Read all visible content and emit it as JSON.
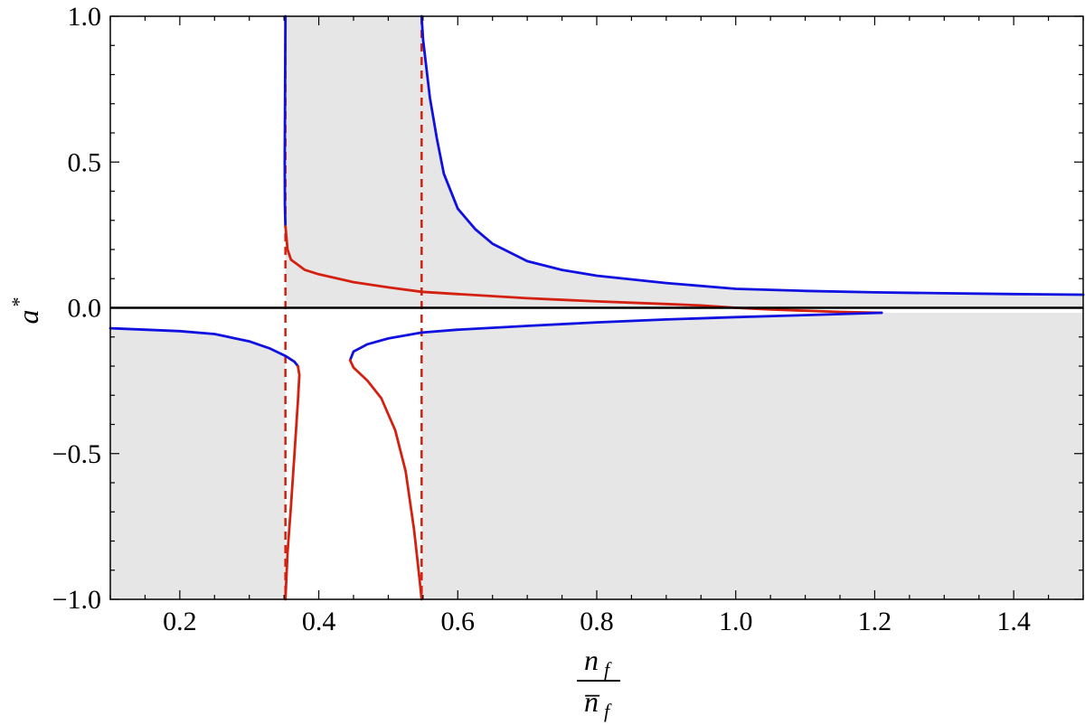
{
  "chart_data": {
    "type": "line",
    "title": "",
    "xlim": [
      0.1,
      1.5
    ],
    "ylim": [
      -1.0,
      1.0
    ],
    "xticks": [
      0.2,
      0.4,
      0.6,
      0.8,
      1.0,
      1.2,
      1.4
    ],
    "xtick_labels": [
      "0.2",
      "0.4",
      "0.6",
      "0.8",
      "1.0",
      "1.2",
      "1.4"
    ],
    "yticks": [
      -1.0,
      -0.5,
      0.0,
      0.5,
      1.0
    ],
    "ytick_labels": [
      "−1.0",
      "−0.5",
      "0.0",
      "0.5",
      "1.0"
    ],
    "xlabel": {
      "numerator": "n",
      "numerator_sub": "f",
      "denominator": "n̅",
      "denominator_sub": "f"
    },
    "ylabel": {
      "base": "a",
      "sup": "*"
    },
    "grid": false,
    "legend": "none",
    "colors": {
      "blue": "#1010e0",
      "red": "#d42010",
      "shade": "#e6e6e6",
      "axis": "#000000"
    },
    "vertical_dashed_lines": [
      0.352,
      0.548
    ],
    "shaded_regions": [
      {
        "name": "upper-left-band",
        "points": [
          [
            0.352,
            1.0
          ],
          [
            0.548,
            1.0
          ],
          [
            0.548,
            0.0
          ],
          [
            0.352,
            0.0
          ]
        ]
      },
      {
        "name": "upper-right-wedge",
        "upper": [
          [
            0.548,
            1.0
          ],
          [
            0.56,
            0.72
          ],
          [
            0.58,
            0.46
          ],
          [
            0.6,
            0.34
          ],
          [
            0.65,
            0.22
          ],
          [
            0.7,
            0.16
          ],
          [
            0.8,
            0.11
          ],
          [
            0.9,
            0.085
          ],
          [
            1.0,
            0.065
          ],
          [
            1.1,
            0.058
          ],
          [
            1.2,
            0.053
          ],
          [
            1.3,
            0.05
          ],
          [
            1.4,
            0.047
          ],
          [
            1.5,
            0.045
          ]
        ],
        "lower": [
          [
            1.5,
            0.0
          ],
          [
            0.548,
            0.0
          ]
        ]
      },
      {
        "name": "lower-left",
        "points": [
          [
            0.1,
            -0.07
          ],
          [
            0.2,
            -0.08
          ],
          [
            0.25,
            -0.09
          ],
          [
            0.3,
            -0.115
          ],
          [
            0.33,
            -0.14
          ],
          [
            0.352,
            -0.165
          ],
          [
            0.352,
            -1.0
          ],
          [
            0.1,
            -1.0
          ]
        ]
      },
      {
        "name": "lower-right",
        "points": [
          [
            0.548,
            -0.085
          ],
          [
            0.7,
            -0.062
          ],
          [
            0.8,
            -0.05
          ],
          [
            0.9,
            -0.04
          ],
          [
            1.0,
            -0.032
          ],
          [
            1.1,
            -0.025
          ],
          [
            1.21,
            -0.017
          ],
          [
            1.5,
            -0.017
          ],
          [
            1.5,
            -1.0
          ],
          [
            0.548,
            -1.0
          ]
        ]
      }
    ],
    "series": [
      {
        "color": "blue",
        "points": [
          [
            0.352,
            1.0
          ],
          [
            0.3515,
            0.75
          ],
          [
            0.351,
            0.5
          ],
          [
            0.3512,
            0.35
          ],
          [
            0.352,
            0.28
          ]
        ]
      },
      {
        "color": "red",
        "points": [
          [
            0.352,
            0.28
          ],
          [
            0.355,
            0.2
          ],
          [
            0.36,
            0.165
          ],
          [
            0.38,
            0.13
          ],
          [
            0.4,
            0.115
          ],
          [
            0.45,
            0.088
          ],
          [
            0.5,
            0.07
          ],
          [
            0.548,
            0.055
          ],
          [
            0.6,
            0.047
          ],
          [
            0.7,
            0.033
          ],
          [
            0.8,
            0.022
          ],
          [
            0.9,
            0.013
          ],
          [
            0.95,
            0.008
          ],
          [
            1.0,
            0.0
          ],
          [
            1.05,
            -0.006
          ],
          [
            1.1,
            -0.01
          ],
          [
            1.15,
            -0.014
          ],
          [
            1.21,
            -0.017
          ]
        ]
      },
      {
        "color": "blue",
        "points": [
          [
            0.548,
            1.0
          ],
          [
            0.55,
            0.92
          ],
          [
            0.56,
            0.72
          ],
          [
            0.57,
            0.58
          ],
          [
            0.58,
            0.46
          ],
          [
            0.6,
            0.34
          ],
          [
            0.625,
            0.27
          ],
          [
            0.65,
            0.22
          ],
          [
            0.7,
            0.16
          ],
          [
            0.75,
            0.13
          ],
          [
            0.8,
            0.11
          ],
          [
            0.9,
            0.085
          ],
          [
            1.0,
            0.065
          ],
          [
            1.1,
            0.058
          ],
          [
            1.2,
            0.053
          ],
          [
            1.3,
            0.05
          ],
          [
            1.4,
            0.047
          ],
          [
            1.5,
            0.045
          ]
        ]
      },
      {
        "color": "blue",
        "points": [
          [
            0.1,
            -0.07
          ],
          [
            0.15,
            -0.075
          ],
          [
            0.2,
            -0.08
          ],
          [
            0.25,
            -0.09
          ],
          [
            0.3,
            -0.115
          ],
          [
            0.33,
            -0.14
          ],
          [
            0.352,
            -0.165
          ],
          [
            0.365,
            -0.185
          ],
          [
            0.37,
            -0.2
          ]
        ]
      },
      {
        "color": "red",
        "points": [
          [
            0.37,
            -0.2
          ],
          [
            0.372,
            -0.23
          ],
          [
            0.37,
            -0.32
          ],
          [
            0.365,
            -0.5
          ],
          [
            0.36,
            -0.68
          ],
          [
            0.355,
            -0.84
          ],
          [
            0.352,
            -1.0
          ]
        ]
      },
      {
        "color": "blue",
        "points": [
          [
            0.445,
            -0.18
          ],
          [
            0.45,
            -0.15
          ],
          [
            0.47,
            -0.125
          ],
          [
            0.5,
            -0.105
          ],
          [
            0.548,
            -0.085
          ],
          [
            0.6,
            -0.075
          ],
          [
            0.7,
            -0.062
          ],
          [
            0.8,
            -0.05
          ],
          [
            0.9,
            -0.04
          ],
          [
            1.0,
            -0.032
          ],
          [
            1.1,
            -0.025
          ],
          [
            1.21,
            -0.017
          ]
        ]
      },
      {
        "color": "red",
        "points": [
          [
            0.445,
            -0.18
          ],
          [
            0.45,
            -0.205
          ],
          [
            0.47,
            -0.25
          ],
          [
            0.49,
            -0.31
          ],
          [
            0.51,
            -0.42
          ],
          [
            0.525,
            -0.56
          ],
          [
            0.537,
            -0.76
          ],
          [
            0.545,
            -0.93
          ],
          [
            0.548,
            -1.0
          ]
        ]
      }
    ]
  }
}
